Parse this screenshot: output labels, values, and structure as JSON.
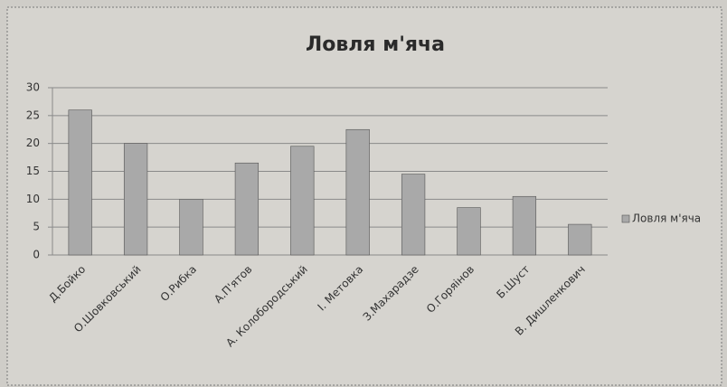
{
  "chart_data": {
    "type": "bar",
    "title": "Ловля м'яча",
    "categories": [
      "Д.Бойко",
      "О.Шовковський",
      "О.Рибка",
      "А.П'ятов",
      "А. Колобородський",
      "І. Метовка",
      "З.Махарадзе",
      "О.Горяінов",
      "Б.Шуст",
      "В. Дишленкович"
    ],
    "series": [
      {
        "name": "Ловля м'яча",
        "color": "#a9a9a9",
        "values": [
          26,
          20,
          10,
          16.5,
          19.5,
          22.5,
          14.5,
          8.5,
          10.5,
          5.5
        ]
      }
    ],
    "ylim": [
      0,
      30
    ],
    "yticks": [
      0,
      5,
      10,
      15,
      20,
      25,
      30
    ],
    "grid": true,
    "legend": "right"
  }
}
